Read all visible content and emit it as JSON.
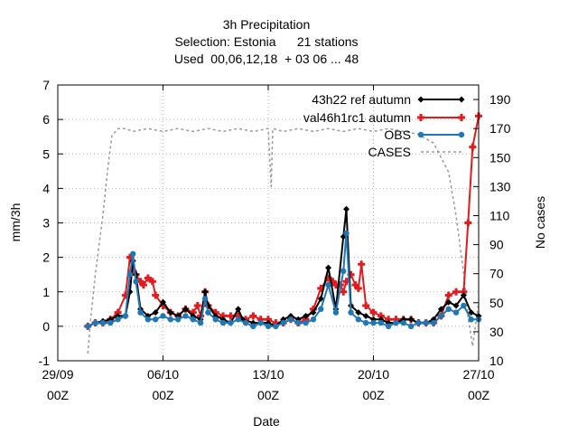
{
  "chart_data": {
    "type": "line",
    "title_lines": [
      "3h Precipitation",
      "Selection: Estonia      21 stations",
      "Used  00,06,12,18  + 03 06 ... 48"
    ],
    "xlabel": "Date",
    "ylabel": "mm/3h",
    "y2label": "No cases",
    "x_ticks": [
      {
        "line1": "29/09",
        "line2": "00Z",
        "day": 0
      },
      {
        "line1": "06/10",
        "line2": "00Z",
        "day": 7
      },
      {
        "line1": "13/10",
        "line2": "00Z",
        "day": 14
      },
      {
        "line1": "20/10",
        "line2": "00Z",
        "day": 21
      },
      {
        "line1": "27/10",
        "line2": "00Z",
        "day": 28
      }
    ],
    "xlim": [
      0,
      28
    ],
    "ylim": [
      -1,
      7
    ],
    "yticks": [
      -1,
      0,
      1,
      2,
      3,
      4,
      5,
      6,
      7
    ],
    "y2lim": [
      10,
      200
    ],
    "y2ticks": [
      10,
      30,
      50,
      70,
      90,
      110,
      130,
      150,
      170,
      190
    ],
    "grid": true,
    "legend_position": "top-right",
    "series": [
      {
        "name": "43h22_ref_autumn",
        "legend_parts": [
          "43h22 ",
          "r",
          "ef",
          " a",
          "utumn"
        ],
        "color": "#000000",
        "marker": "diamond",
        "axis": "y",
        "points": [
          [
            2.0,
            0.0
          ],
          [
            2.5,
            0.1
          ],
          [
            3.0,
            0.15
          ],
          [
            3.5,
            0.2
          ],
          [
            4.0,
            0.3
          ],
          [
            4.5,
            0.3
          ],
          [
            4.8,
            1.0
          ],
          [
            5.0,
            1.9
          ],
          [
            5.2,
            1.5
          ],
          [
            5.5,
            0.5
          ],
          [
            6.0,
            0.3
          ],
          [
            6.5,
            0.4
          ],
          [
            7.0,
            0.7
          ],
          [
            7.5,
            0.4
          ],
          [
            8.0,
            0.3
          ],
          [
            8.5,
            0.5
          ],
          [
            9.0,
            0.3
          ],
          [
            9.5,
            0.2
          ],
          [
            9.8,
            1.0
          ],
          [
            10.0,
            0.6
          ],
          [
            10.5,
            0.3
          ],
          [
            11.0,
            0.2
          ],
          [
            11.5,
            0.1
          ],
          [
            12.0,
            0.5
          ],
          [
            12.3,
            0.2
          ],
          [
            13.0,
            0.1
          ],
          [
            13.5,
            0.1
          ],
          [
            14.0,
            0.1
          ],
          [
            14.5,
            0.0
          ],
          [
            15.0,
            0.2
          ],
          [
            15.5,
            0.3
          ],
          [
            16.0,
            0.2
          ],
          [
            16.5,
            0.3
          ],
          [
            17.0,
            0.4
          ],
          [
            17.5,
            0.8
          ],
          [
            18.0,
            1.7
          ],
          [
            18.5,
            0.5
          ],
          [
            19.0,
            2.6
          ],
          [
            19.2,
            3.4
          ],
          [
            19.5,
            0.6
          ],
          [
            20.0,
            0.4
          ],
          [
            20.5,
            0.3
          ],
          [
            21.0,
            0.2
          ],
          [
            21.5,
            0.2
          ],
          [
            22.0,
            0.1
          ],
          [
            22.5,
            0.1
          ],
          [
            23.0,
            0.2
          ],
          [
            23.5,
            0.2
          ],
          [
            24.0,
            0.1
          ],
          [
            24.5,
            0.1
          ],
          [
            25.0,
            0.2
          ],
          [
            25.5,
            0.5
          ],
          [
            26.0,
            0.7
          ],
          [
            26.5,
            0.6
          ],
          [
            27.0,
            0.9
          ],
          [
            27.5,
            0.4
          ],
          [
            28.0,
            0.3
          ]
        ]
      },
      {
        "name": "val46h1rc1_autumn",
        "legend_parts": [
          "val46h1rc1",
          " a",
          "utumn"
        ],
        "color": "#e41a1c",
        "marker": "cross",
        "axis": "y",
        "points": [
          [
            2.0,
            0.0
          ],
          [
            2.5,
            0.1
          ],
          [
            3.0,
            0.1
          ],
          [
            3.5,
            0.2
          ],
          [
            4.0,
            0.4
          ],
          [
            4.5,
            0.9
          ],
          [
            4.8,
            2.0
          ],
          [
            5.0,
            1.6
          ],
          [
            5.2,
            1.5
          ],
          [
            5.5,
            1.3
          ],
          [
            5.7,
            1.2
          ],
          [
            6.0,
            1.4
          ],
          [
            6.3,
            1.3
          ],
          [
            6.5,
            0.9
          ],
          [
            7.0,
            0.6
          ],
          [
            7.5,
            0.4
          ],
          [
            8.0,
            0.3
          ],
          [
            8.5,
            0.5
          ],
          [
            9.0,
            0.4
          ],
          [
            9.3,
            0.6
          ],
          [
            9.5,
            0.3
          ],
          [
            9.8,
            1.0
          ],
          [
            10.0,
            0.6
          ],
          [
            10.5,
            0.4
          ],
          [
            11.0,
            0.3
          ],
          [
            11.5,
            0.3
          ],
          [
            12.0,
            0.3
          ],
          [
            12.5,
            0.2
          ],
          [
            13.0,
            0.3
          ],
          [
            13.5,
            0.2
          ],
          [
            14.0,
            0.2
          ],
          [
            14.5,
            0.1
          ],
          [
            15.0,
            0.1
          ],
          [
            15.5,
            0.2
          ],
          [
            16.0,
            0.1
          ],
          [
            16.5,
            0.2
          ],
          [
            17.0,
            0.5
          ],
          [
            17.5,
            1.1
          ],
          [
            18.0,
            1.4
          ],
          [
            18.3,
            1.3
          ],
          [
            18.5,
            1.2
          ],
          [
            18.8,
            1.2
          ],
          [
            19.0,
            1.0
          ],
          [
            19.2,
            1.3
          ],
          [
            19.5,
            1.5
          ],
          [
            19.8,
            1.2
          ],
          [
            20.0,
            1.1
          ],
          [
            20.2,
            1.8
          ],
          [
            20.5,
            0.6
          ],
          [
            21.0,
            0.4
          ],
          [
            21.5,
            0.3
          ],
          [
            22.0,
            0.2
          ],
          [
            22.5,
            0.2
          ],
          [
            23.0,
            0.2
          ],
          [
            23.5,
            0.2
          ],
          [
            24.0,
            0.1
          ],
          [
            24.5,
            0.1
          ],
          [
            25.0,
            0.1
          ],
          [
            25.5,
            0.3
          ],
          [
            26.0,
            0.9
          ],
          [
            26.5,
            1.0
          ],
          [
            27.0,
            1.0
          ],
          [
            27.3,
            3.0
          ],
          [
            27.6,
            5.2
          ],
          [
            28.0,
            6.1
          ]
        ]
      },
      {
        "name": "OBS",
        "legend_parts": [
          "OBS"
        ],
        "color": "#1f78b4",
        "marker": "circle",
        "axis": "y",
        "points": [
          [
            2.0,
            0.0
          ],
          [
            2.5,
            0.1
          ],
          [
            3.0,
            0.1
          ],
          [
            3.5,
            0.1
          ],
          [
            4.0,
            0.2
          ],
          [
            4.5,
            0.3
          ],
          [
            4.8,
            1.5
          ],
          [
            5.0,
            2.1
          ],
          [
            5.2,
            1.3
          ],
          [
            5.5,
            0.4
          ],
          [
            6.0,
            0.2
          ],
          [
            6.5,
            0.2
          ],
          [
            7.0,
            0.3
          ],
          [
            7.5,
            0.2
          ],
          [
            8.0,
            0.2
          ],
          [
            8.5,
            0.3
          ],
          [
            9.0,
            0.2
          ],
          [
            9.5,
            0.1
          ],
          [
            9.8,
            0.8
          ],
          [
            10.0,
            0.4
          ],
          [
            10.5,
            0.2
          ],
          [
            11.0,
            0.1
          ],
          [
            11.5,
            0.1
          ],
          [
            12.0,
            0.2
          ],
          [
            12.5,
            0.1
          ],
          [
            13.0,
            0.0
          ],
          [
            13.5,
            0.1
          ],
          [
            14.0,
            0.0
          ],
          [
            14.5,
            0.0
          ],
          [
            15.0,
            0.1
          ],
          [
            15.5,
            0.2
          ],
          [
            16.0,
            0.1
          ],
          [
            16.5,
            0.1
          ],
          [
            17.0,
            0.2
          ],
          [
            17.5,
            0.5
          ],
          [
            18.0,
            1.2
          ],
          [
            18.5,
            0.4
          ],
          [
            19.0,
            1.6
          ],
          [
            19.2,
            2.7
          ],
          [
            19.5,
            0.4
          ],
          [
            20.0,
            0.2
          ],
          [
            20.5,
            0.1
          ],
          [
            21.0,
            0.1
          ],
          [
            21.5,
            0.1
          ],
          [
            22.0,
            0.0
          ],
          [
            22.5,
            0.1
          ],
          [
            23.0,
            0.1
          ],
          [
            23.5,
            0.0
          ],
          [
            24.0,
            0.1
          ],
          [
            24.5,
            0.1
          ],
          [
            25.0,
            0.1
          ],
          [
            25.5,
            0.3
          ],
          [
            26.0,
            0.5
          ],
          [
            26.5,
            0.4
          ],
          [
            27.0,
            0.6
          ],
          [
            27.5,
            0.2
          ],
          [
            28.0,
            0.2
          ]
        ]
      },
      {
        "name": "CASES",
        "legend_parts": [
          "CASES"
        ],
        "color": "#999999",
        "dashed": true,
        "marker": "none",
        "axis": "y2",
        "points": [
          [
            2.0,
            15
          ],
          [
            2.2,
            40
          ],
          [
            2.5,
            70
          ],
          [
            3.0,
            110
          ],
          [
            3.3,
            140
          ],
          [
            3.6,
            165
          ],
          [
            4.0,
            170
          ],
          [
            4.5,
            170
          ],
          [
            5.0,
            168
          ],
          [
            6.0,
            170
          ],
          [
            7.0,
            168
          ],
          [
            8.0,
            170
          ],
          [
            9.0,
            168
          ],
          [
            10.0,
            170
          ],
          [
            11.0,
            168
          ],
          [
            12.0,
            170
          ],
          [
            13.0,
            168
          ],
          [
            14.0,
            170
          ],
          [
            14.2,
            130
          ],
          [
            14.3,
            170
          ],
          [
            15.0,
            168
          ],
          [
            16.0,
            170
          ],
          [
            17.0,
            168
          ],
          [
            18.0,
            170
          ],
          [
            19.0,
            168
          ],
          [
            20.0,
            170
          ],
          [
            21.0,
            168
          ],
          [
            22.0,
            170
          ],
          [
            23.0,
            168
          ],
          [
            24.0,
            166
          ],
          [
            25.0,
            160
          ],
          [
            25.5,
            150
          ],
          [
            26.0,
            140
          ],
          [
            26.5,
            110
          ],
          [
            27.0,
            70
          ],
          [
            27.3,
            40
          ],
          [
            27.6,
            20
          ],
          [
            28.0,
            50
          ]
        ]
      }
    ]
  }
}
